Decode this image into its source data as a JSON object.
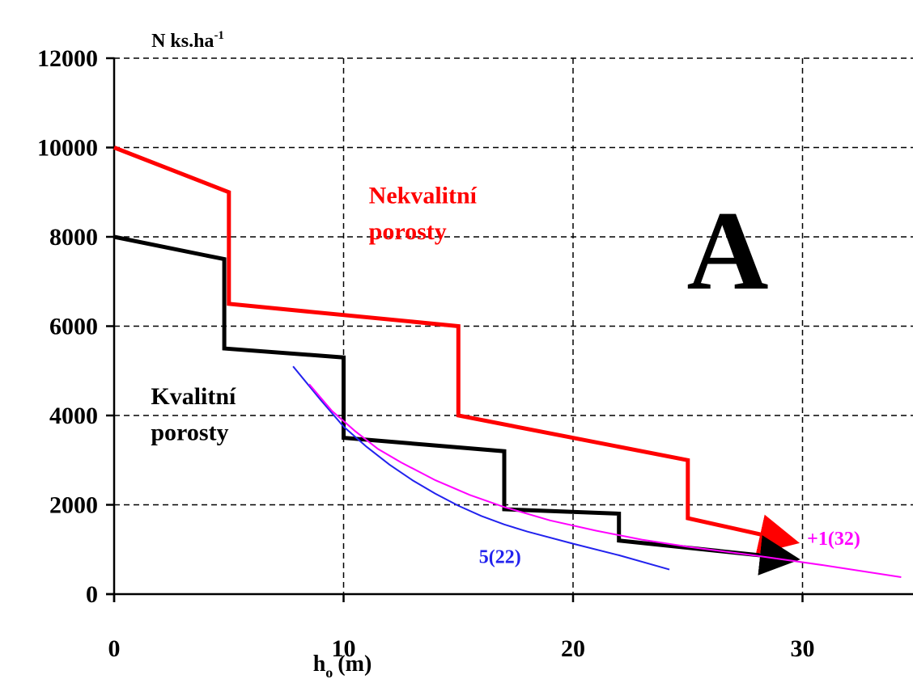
{
  "chart_data": {
    "type": "line",
    "ylabel": "N ks.ha",
    "ylabel_sup": "-1",
    "xlabel": "h",
    "xlabel_sub": "o",
    "xlabel_unit": "(m)",
    "panel_letter": "A",
    "xlim": [
      0,
      35
    ],
    "ylim": [
      0,
      12000
    ],
    "x_ticks": [
      0,
      10,
      20,
      30
    ],
    "y_ticks": [
      0,
      2000,
      4000,
      6000,
      8000,
      10000,
      12000
    ],
    "x_tick_labels": [
      "0",
      "10",
      "20",
      "30"
    ],
    "y_tick_labels": [
      "0",
      "2000",
      "4000",
      "6000",
      "8000",
      "10000",
      "12000"
    ],
    "grid": true,
    "series": [
      {
        "key": "nekvalitni",
        "color": "#ff0000",
        "width": 5,
        "arrow": true,
        "x": [
          0,
          5,
          5,
          15,
          15,
          25,
          25,
          28.5
        ],
        "y": [
          10000,
          9000,
          6500,
          6000,
          4000,
          3000,
          1700,
          1300
        ]
      },
      {
        "key": "kvalitni",
        "color": "#000000",
        "width": 5,
        "arrow": true,
        "x": [
          0,
          4.8,
          4.8,
          10,
          10,
          17,
          17,
          22,
          22,
          28.5
        ],
        "y": [
          8000,
          7500,
          5500,
          5300,
          3500,
          3200,
          1900,
          1800,
          1200,
          850
        ]
      },
      {
        "key": "curve_5_22",
        "color": "#2222ee",
        "width": 2,
        "arrow": false,
        "x": [
          7.8,
          9,
          10,
          11,
          12,
          13,
          14,
          15,
          16,
          17,
          18,
          20,
          22,
          24.2
        ],
        "y": [
          5100,
          4350,
          3750,
          3300,
          2900,
          2550,
          2250,
          1980,
          1750,
          1560,
          1400,
          1130,
          870,
          550
        ]
      },
      {
        "key": "curve_1_32",
        "color": "#ff00ff",
        "width": 2,
        "arrow": false,
        "x": [
          8.5,
          9.5,
          10.5,
          11.5,
          12.5,
          14,
          15.5,
          17,
          19,
          21,
          23,
          25,
          28,
          31,
          34.3
        ],
        "y": [
          4700,
          4100,
          3650,
          3250,
          2950,
          2550,
          2220,
          1950,
          1650,
          1420,
          1220,
          1060,
          860,
          640,
          380
        ]
      }
    ],
    "annotations": [
      {
        "key": "nekvalitni_1",
        "text": "Nekvalitní",
        "color": "#ff0000",
        "x": 11.1,
        "y": 8750
      },
      {
        "key": "nekvalitni_2",
        "text": "porosty",
        "color": "#ff0000",
        "x": 11.1,
        "y": 7950
      },
      {
        "key": "kvalitni_1",
        "text": "Kvalitní",
        "color": "#000000",
        "x": 1.6,
        "y": 4250
      },
      {
        "key": "kvalitni_2",
        "text": "porosty",
        "color": "#000000",
        "x": 1.6,
        "y": 3450
      },
      {
        "key": "label_5_22",
        "text": "5(22)",
        "color": "#2222ee",
        "x": 15.9,
        "y": 700
      },
      {
        "key": "label_1_32",
        "text": "+1(32)",
        "color": "#ff00ff",
        "x": 30.2,
        "y": 1100
      }
    ]
  }
}
